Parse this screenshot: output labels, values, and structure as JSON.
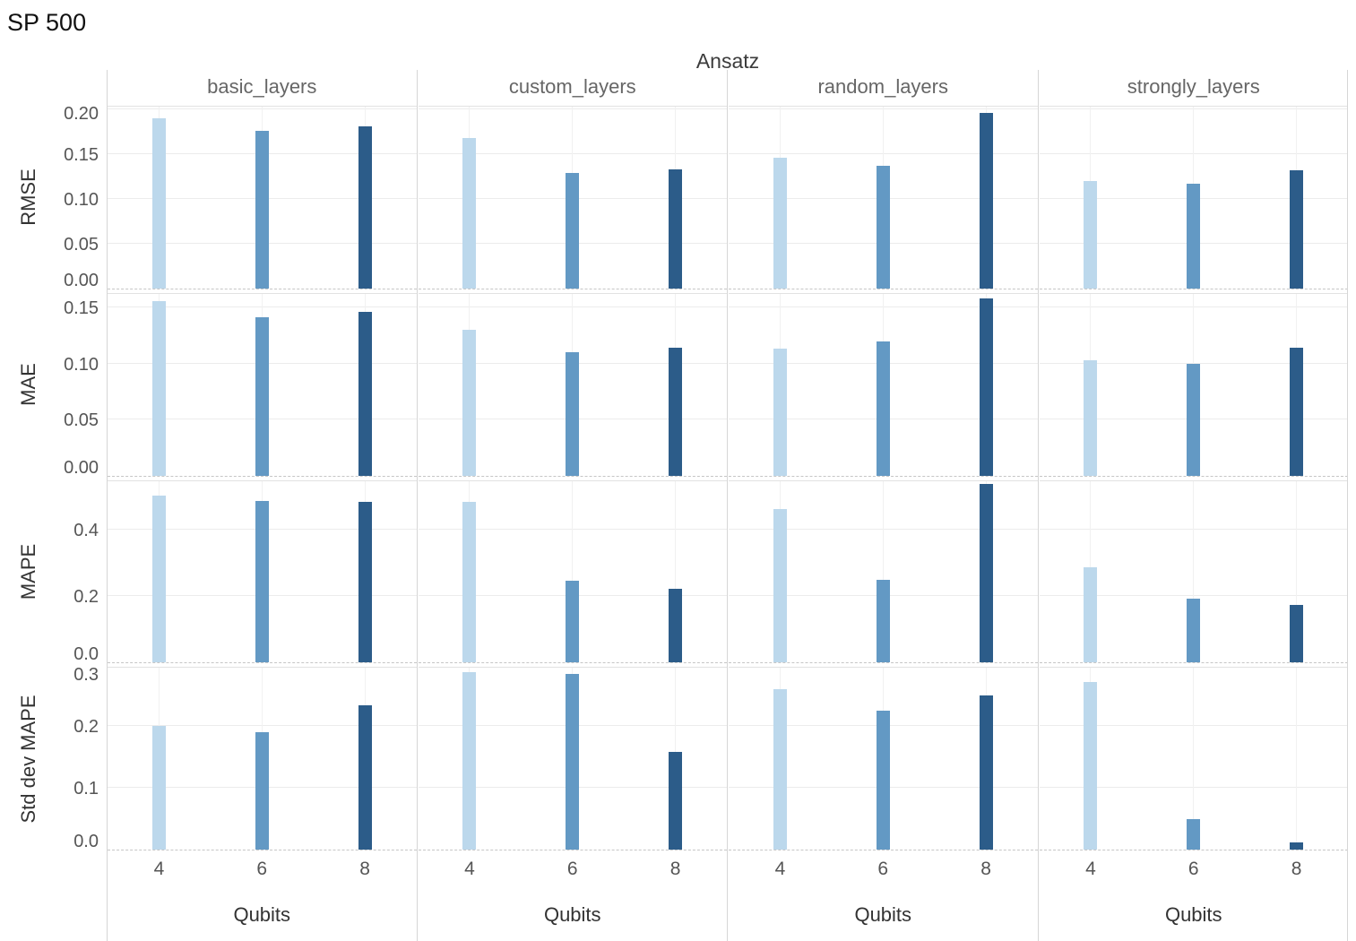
{
  "title": "SP 500",
  "chart_data": {
    "type": "bar",
    "facet_col_title": "Ansatz",
    "facet_cols": [
      "basic_layers",
      "custom_layers",
      "random_layers",
      "strongly_layers"
    ],
    "x": {
      "label": "Qubits",
      "categories": [
        "4",
        "6",
        "8"
      ]
    },
    "bar_colors": [
      "#bcd8ec",
      "#6399c4",
      "#2c5c89"
    ],
    "legend": "none (hue = qubits, shown by bar color)",
    "grid": "on",
    "metrics": [
      {
        "name": "RMSE",
        "ylim": [
          0,
          0.205
        ],
        "tick_values": [
          0,
          0.05,
          0.1,
          0.15,
          0.2
        ],
        "tick_labels": [
          "0.00",
          "0.05",
          "0.10",
          "0.15",
          "0.20"
        ],
        "values": {
          "basic_layers": [
            0.19,
            0.176,
            0.181
          ],
          "custom_layers": [
            0.168,
            0.129,
            0.133
          ],
          "random_layers": [
            0.146,
            0.137,
            0.196
          ],
          "strongly_layers": [
            0.12,
            0.117,
            0.132
          ]
        }
      },
      {
        "name": "MAE",
        "ylim": [
          0,
          0.164
        ],
        "tick_values": [
          0,
          0.05,
          0.1,
          0.15
        ],
        "tick_labels": [
          "0.00",
          "0.05",
          "0.10",
          "0.15"
        ],
        "values": {
          "basic_layers": [
            0.156,
            0.141,
            0.146
          ],
          "custom_layers": [
            0.13,
            0.11,
            0.114
          ],
          "random_layers": [
            0.113,
            0.12,
            0.158
          ],
          "strongly_layers": [
            0.103,
            0.1,
            0.114
          ]
        }
      },
      {
        "name": "MAPE",
        "ylim": [
          0,
          0.553
        ],
        "tick_values": [
          0,
          0.2,
          0.4
        ],
        "tick_labels": [
          "0.0",
          "0.2",
          "0.4"
        ],
        "values": {
          "basic_layers": [
            0.504,
            0.488,
            0.485
          ],
          "custom_layers": [
            0.485,
            0.247,
            0.222
          ],
          "random_layers": [
            0.463,
            0.249,
            0.537
          ],
          "strongly_layers": [
            0.288,
            0.192,
            0.173
          ]
        }
      },
      {
        "name": "Std dev MAPE",
        "ylim": [
          0,
          0.297
        ],
        "tick_values": [
          0,
          0.1,
          0.2,
          0.3
        ],
        "tick_labels": [
          "0.0",
          "0.1",
          "0.2",
          "0.3"
        ],
        "values": {
          "basic_layers": [
            0.2,
            0.19,
            0.234
          ],
          "custom_layers": [
            0.287,
            0.284,
            0.158
          ],
          "random_layers": [
            0.259,
            0.225,
            0.249
          ],
          "strongly_layers": [
            0.272,
            0.05,
            0.012
          ]
        }
      }
    ]
  }
}
